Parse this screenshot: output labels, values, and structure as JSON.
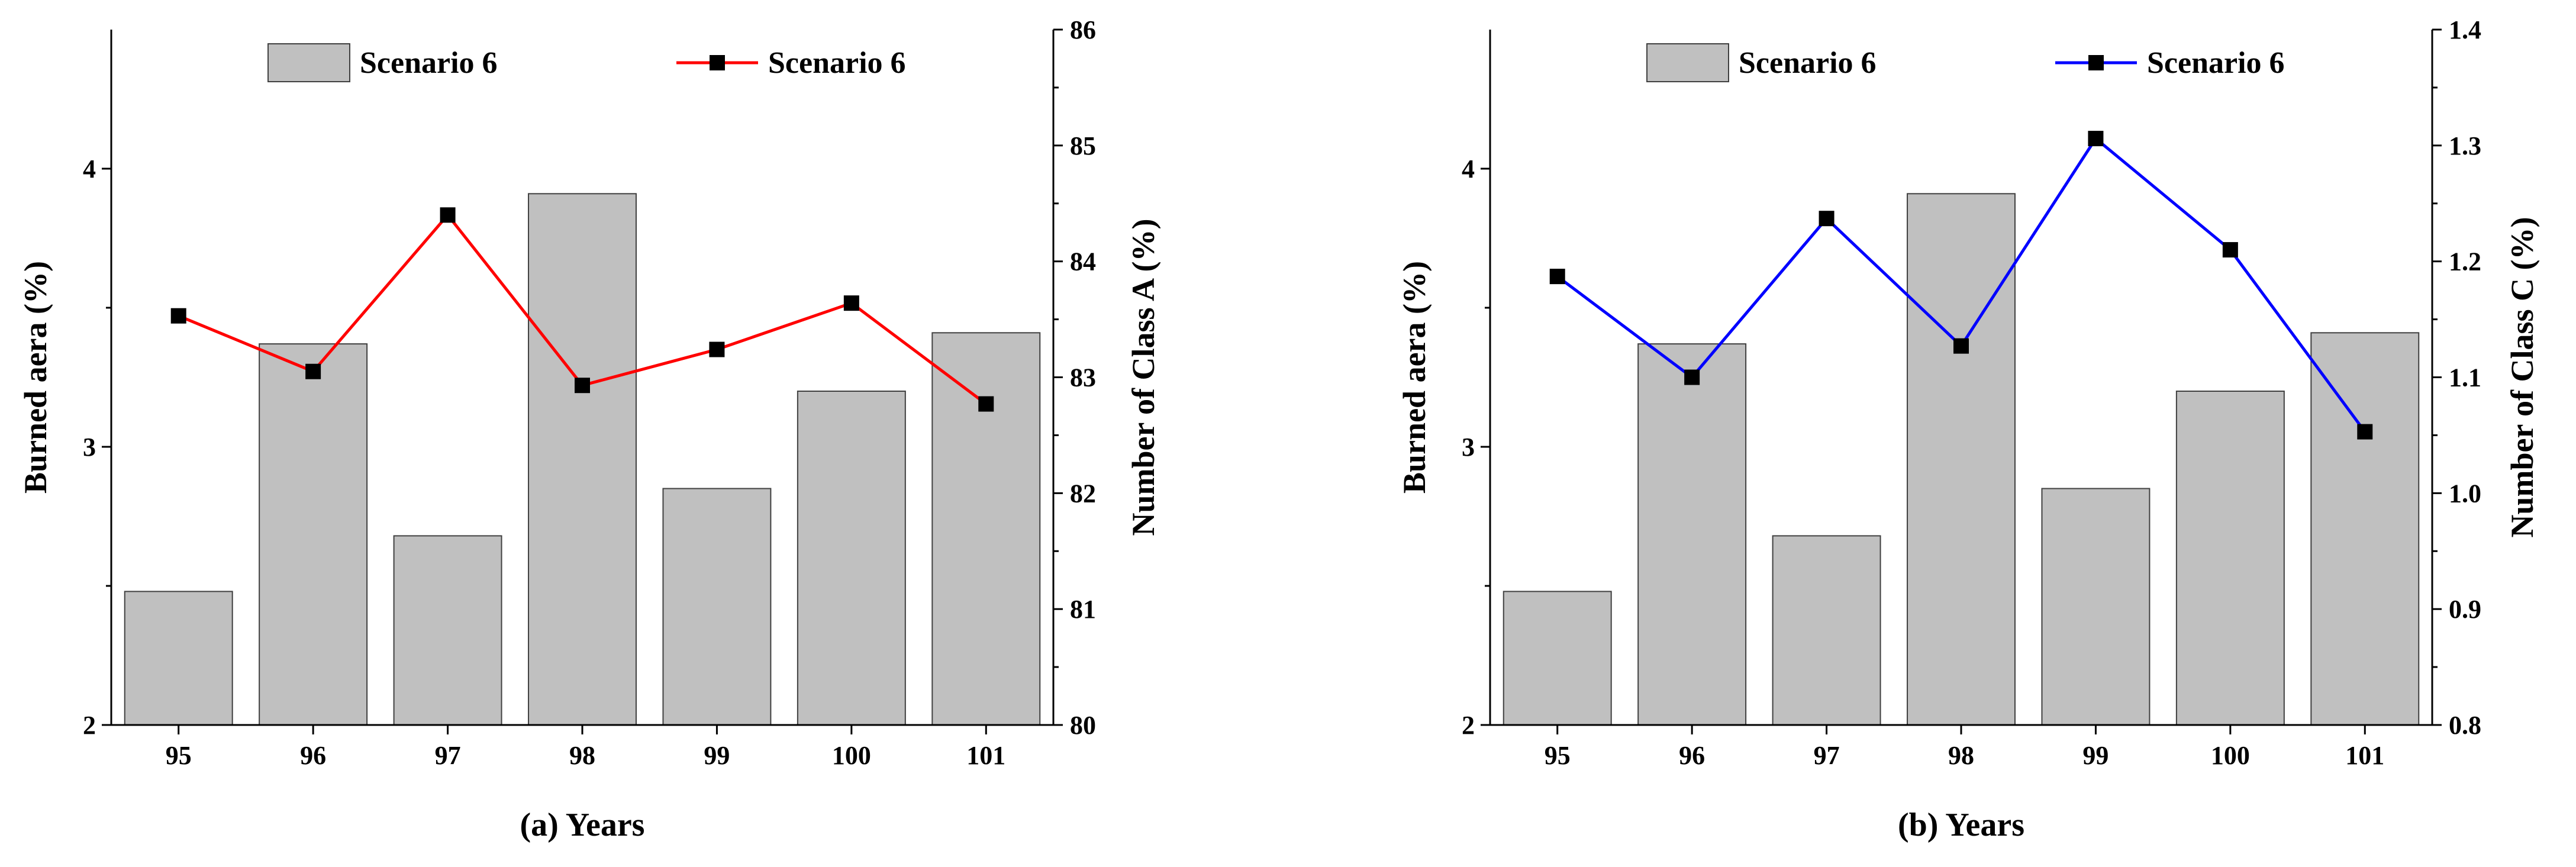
{
  "chart_data": [
    {
      "type": "bar+line",
      "panel": "a",
      "xlabel": "(a) Years",
      "categories": [
        "95",
        "96",
        "97",
        "98",
        "99",
        "100",
        "101"
      ],
      "bar_series": {
        "name": "Scenario 6",
        "values": [
          2.48,
          3.37,
          2.68,
          3.91,
          2.85,
          3.2,
          3.41
        ],
        "color": "#c0c0c0",
        "ylabel": "Burned aera (%)",
        "ylim": [
          2,
          4.5
        ],
        "yticks": [
          "2",
          "3",
          "4"
        ]
      },
      "line_series": {
        "name": "Scenario 6",
        "values": [
          83.53,
          83.05,
          84.4,
          82.93,
          83.24,
          83.64,
          82.77
        ],
        "color": "#ff0000",
        "ylabel": "Number of Class A (%)",
        "ylim": [
          80,
          86
        ],
        "yticks": [
          "80",
          "81",
          "82",
          "83",
          "84",
          "85",
          "86"
        ]
      },
      "legend_placement": "top"
    },
    {
      "type": "bar+line",
      "panel": "b",
      "xlabel": "(b) Years",
      "categories": [
        "95",
        "96",
        "97",
        "98",
        "99",
        "100",
        "101"
      ],
      "bar_series": {
        "name": "Scenario 6",
        "values": [
          2.48,
          3.37,
          2.68,
          3.91,
          2.85,
          3.2,
          3.41
        ],
        "color": "#c0c0c0",
        "ylabel": "Burned aera (%)",
        "ylim": [
          2,
          4.5
        ],
        "yticks": [
          "2",
          "3",
          "4"
        ]
      },
      "line_series": {
        "name": "Scenario 6",
        "values": [
          1.187,
          1.1,
          1.237,
          1.127,
          1.306,
          1.21,
          1.053
        ],
        "color": "#0000ff",
        "ylabel": "Number of Class C (%)",
        "ylim": [
          0.8,
          1.4
        ],
        "yticks": [
          "0.8",
          "0.9",
          "1.0",
          "1.1",
          "1.2",
          "1.3",
          "1.4"
        ]
      },
      "legend_placement": "top"
    }
  ]
}
